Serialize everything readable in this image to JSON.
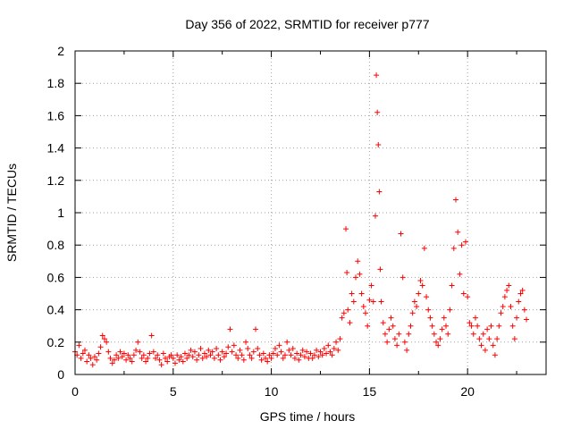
{
  "chart_data": {
    "type": "scatter",
    "title": "Day 356 of 2022, SRMTID for receiver p777",
    "xlabel": "GPS time / hours",
    "ylabel": "SRMTID / TECUs",
    "xlim": [
      0,
      24
    ],
    "ylim": [
      0,
      2
    ],
    "xticks": [
      0,
      5,
      10,
      15,
      20
    ],
    "xtick_labels": [
      "0",
      "5",
      "10",
      "15",
      "20"
    ],
    "yticks": [
      0,
      0.2,
      0.4,
      0.6,
      0.8,
      1,
      1.2,
      1.4,
      1.6,
      1.8,
      2
    ],
    "ytick_labels": [
      "0",
      "0.2",
      "0.4",
      "0.6",
      "0.8",
      "1",
      "1.2",
      "1.4",
      "1.6",
      "1.8",
      "2"
    ],
    "grid": true,
    "marker": "+",
    "color": "#ff0000",
    "series": [
      {
        "name": "SRMTID",
        "points": [
          [
            0.0,
            0.14
          ],
          [
            0.1,
            0.12
          ],
          [
            0.2,
            0.18
          ],
          [
            0.3,
            0.1
          ],
          [
            0.4,
            0.13
          ],
          [
            0.5,
            0.15
          ],
          [
            0.6,
            0.08
          ],
          [
            0.7,
            0.12
          ],
          [
            0.8,
            0.1
          ],
          [
            0.9,
            0.06
          ],
          [
            1.0,
            0.11
          ],
          [
            1.1,
            0.09
          ],
          [
            1.2,
            0.13
          ],
          [
            1.3,
            0.17
          ],
          [
            1.4,
            0.24
          ],
          [
            1.5,
            0.22
          ],
          [
            1.6,
            0.2
          ],
          [
            1.7,
            0.14
          ],
          [
            1.8,
            0.1
          ],
          [
            1.9,
            0.07
          ],
          [
            2.0,
            0.09
          ],
          [
            2.1,
            0.12
          ],
          [
            2.2,
            0.1
          ],
          [
            2.3,
            0.14
          ],
          [
            2.4,
            0.11
          ],
          [
            2.5,
            0.13
          ],
          [
            2.6,
            0.09
          ],
          [
            2.7,
            0.12
          ],
          [
            2.8,
            0.1
          ],
          [
            2.9,
            0.08
          ],
          [
            3.0,
            0.12
          ],
          [
            3.1,
            0.15
          ],
          [
            3.2,
            0.2
          ],
          [
            3.3,
            0.14
          ],
          [
            3.4,
            0.1
          ],
          [
            3.5,
            0.12
          ],
          [
            3.6,
            0.08
          ],
          [
            3.7,
            0.1
          ],
          [
            3.8,
            0.13
          ],
          [
            3.9,
            0.24
          ],
          [
            4.0,
            0.14
          ],
          [
            4.1,
            0.1
          ],
          [
            4.2,
            0.12
          ],
          [
            4.3,
            0.09
          ],
          [
            4.4,
            0.06
          ],
          [
            4.5,
            0.13
          ],
          [
            4.6,
            0.1
          ],
          [
            4.7,
            0.08
          ],
          [
            4.8,
            0.11
          ],
          [
            4.9,
            0.12
          ],
          [
            5.0,
            0.1
          ],
          [
            5.1,
            0.07
          ],
          [
            5.2,
            0.12
          ],
          [
            5.3,
            0.09
          ],
          [
            5.4,
            0.11
          ],
          [
            5.5,
            0.08
          ],
          [
            5.6,
            0.13
          ],
          [
            5.7,
            0.1
          ],
          [
            5.8,
            0.12
          ],
          [
            5.9,
            0.15
          ],
          [
            6.0,
            0.11
          ],
          [
            6.1,
            0.14
          ],
          [
            6.2,
            0.09
          ],
          [
            6.3,
            0.12
          ],
          [
            6.4,
            0.16
          ],
          [
            6.5,
            0.1
          ],
          [
            6.6,
            0.13
          ],
          [
            6.7,
            0.11
          ],
          [
            6.8,
            0.15
          ],
          [
            6.9,
            0.12
          ],
          [
            7.0,
            0.14
          ],
          [
            7.1,
            0.1
          ],
          [
            7.2,
            0.16
          ],
          [
            7.3,
            0.12
          ],
          [
            7.4,
            0.09
          ],
          [
            7.5,
            0.14
          ],
          [
            7.6,
            0.11
          ],
          [
            7.7,
            0.13
          ],
          [
            7.8,
            0.17
          ],
          [
            7.9,
            0.28
          ],
          [
            8.0,
            0.14
          ],
          [
            8.1,
            0.18
          ],
          [
            8.2,
            0.12
          ],
          [
            8.3,
            0.1
          ],
          [
            8.4,
            0.15
          ],
          [
            8.5,
            0.12
          ],
          [
            8.6,
            0.09
          ],
          [
            8.7,
            0.2
          ],
          [
            8.8,
            0.16
          ],
          [
            8.9,
            0.12
          ],
          [
            9.0,
            0.1
          ],
          [
            9.1,
            0.14
          ],
          [
            9.2,
            0.28
          ],
          [
            9.3,
            0.16
          ],
          [
            9.4,
            0.12
          ],
          [
            9.5,
            0.09
          ],
          [
            9.6,
            0.13
          ],
          [
            9.7,
            0.1
          ],
          [
            9.8,
            0.08
          ],
          [
            9.9,
            0.12
          ],
          [
            10.0,
            0.1
          ],
          [
            10.1,
            0.13
          ],
          [
            10.2,
            0.16
          ],
          [
            10.3,
            0.12
          ],
          [
            10.4,
            0.18
          ],
          [
            10.5,
            0.14
          ],
          [
            10.6,
            0.1
          ],
          [
            10.7,
            0.12
          ],
          [
            10.8,
            0.2
          ],
          [
            10.9,
            0.15
          ],
          [
            11.0,
            0.12
          ],
          [
            11.1,
            0.16
          ],
          [
            11.2,
            0.1
          ],
          [
            11.3,
            0.13
          ],
          [
            11.4,
            0.09
          ],
          [
            11.5,
            0.12
          ],
          [
            11.6,
            0.15
          ],
          [
            11.7,
            0.11
          ],
          [
            11.8,
            0.14
          ],
          [
            11.9,
            0.1
          ],
          [
            12.0,
            0.13
          ],
          [
            12.1,
            0.1
          ],
          [
            12.2,
            0.12
          ],
          [
            12.3,
            0.15
          ],
          [
            12.4,
            0.11
          ],
          [
            12.5,
            0.14
          ],
          [
            12.6,
            0.12
          ],
          [
            12.7,
            0.16
          ],
          [
            12.8,
            0.13
          ],
          [
            12.9,
            0.18
          ],
          [
            13.0,
            0.14
          ],
          [
            13.1,
            0.12
          ],
          [
            13.2,
            0.16
          ],
          [
            13.3,
            0.2
          ],
          [
            13.4,
            0.15
          ],
          [
            13.5,
            0.22
          ],
          [
            13.6,
            0.35
          ],
          [
            13.7,
            0.38
          ],
          [
            13.8,
            0.9
          ],
          [
            13.85,
            0.63
          ],
          [
            13.9,
            0.4
          ],
          [
            14.0,
            0.32
          ],
          [
            14.1,
            0.5
          ],
          [
            14.2,
            0.45
          ],
          [
            14.3,
            0.6
          ],
          [
            14.4,
            0.7
          ],
          [
            14.5,
            0.62
          ],
          [
            14.6,
            0.5
          ],
          [
            14.7,
            0.42
          ],
          [
            14.8,
            0.38
          ],
          [
            14.9,
            0.3
          ],
          [
            15.0,
            0.46
          ],
          [
            15.1,
            0.55
          ],
          [
            15.2,
            0.45
          ],
          [
            15.3,
            0.98
          ],
          [
            15.35,
            1.85
          ],
          [
            15.4,
            1.62
          ],
          [
            15.45,
            1.42
          ],
          [
            15.5,
            1.13
          ],
          [
            15.55,
            0.65
          ],
          [
            15.6,
            0.45
          ],
          [
            15.7,
            0.32
          ],
          [
            15.8,
            0.25
          ],
          [
            15.9,
            0.2
          ],
          [
            16.0,
            0.28
          ],
          [
            16.1,
            0.35
          ],
          [
            16.2,
            0.3
          ],
          [
            16.3,
            0.22
          ],
          [
            16.4,
            0.18
          ],
          [
            16.5,
            0.25
          ],
          [
            16.6,
            0.87
          ],
          [
            16.7,
            0.6
          ],
          [
            16.8,
            0.2
          ],
          [
            16.9,
            0.15
          ],
          [
            17.0,
            0.25
          ],
          [
            17.1,
            0.3
          ],
          [
            17.2,
            0.38
          ],
          [
            17.3,
            0.45
          ],
          [
            17.4,
            0.42
          ],
          [
            17.5,
            0.5
          ],
          [
            17.6,
            0.58
          ],
          [
            17.7,
            0.55
          ],
          [
            17.8,
            0.78
          ],
          [
            17.9,
            0.48
          ],
          [
            18.0,
            0.4
          ],
          [
            18.1,
            0.35
          ],
          [
            18.2,
            0.3
          ],
          [
            18.3,
            0.25
          ],
          [
            18.4,
            0.2
          ],
          [
            18.5,
            0.18
          ],
          [
            18.6,
            0.22
          ],
          [
            18.7,
            0.28
          ],
          [
            18.8,
            0.35
          ],
          [
            18.9,
            0.3
          ],
          [
            19.0,
            0.25
          ],
          [
            19.1,
            0.4
          ],
          [
            19.2,
            0.55
          ],
          [
            19.3,
            0.78
          ],
          [
            19.4,
            1.08
          ],
          [
            19.5,
            0.88
          ],
          [
            19.6,
            0.62
          ],
          [
            19.7,
            0.8
          ],
          [
            19.8,
            0.5
          ],
          [
            19.9,
            0.82
          ],
          [
            20.0,
            0.48
          ],
          [
            20.1,
            0.32
          ],
          [
            20.2,
            0.3
          ],
          [
            20.3,
            0.25
          ],
          [
            20.4,
            0.35
          ],
          [
            20.5,
            0.3
          ],
          [
            20.6,
            0.22
          ],
          [
            20.7,
            0.18
          ],
          [
            20.8,
            0.25
          ],
          [
            20.9,
            0.15
          ],
          [
            21.0,
            0.28
          ],
          [
            21.1,
            0.22
          ],
          [
            21.2,
            0.3
          ],
          [
            21.3,
            0.18
          ],
          [
            21.4,
            0.12
          ],
          [
            21.5,
            0.22
          ],
          [
            21.6,
            0.3
          ],
          [
            21.7,
            0.38
          ],
          [
            21.8,
            0.42
          ],
          [
            21.9,
            0.48
          ],
          [
            22.0,
            0.52
          ],
          [
            22.1,
            0.55
          ],
          [
            22.2,
            0.42
          ],
          [
            22.3,
            0.3
          ],
          [
            22.4,
            0.22
          ],
          [
            22.5,
            0.35
          ],
          [
            22.6,
            0.45
          ],
          [
            22.7,
            0.5
          ],
          [
            22.8,
            0.52
          ],
          [
            22.9,
            0.4
          ],
          [
            23.0,
            0.34
          ]
        ]
      }
    ]
  }
}
